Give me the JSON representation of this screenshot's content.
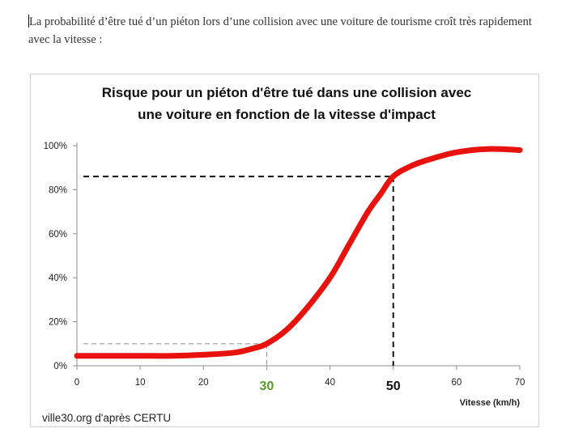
{
  "intro_text": "La probabilité d’être tué d’un piéton lors d’une collision avec une voiture de tourisme croît très rapidement avec la vitesse :",
  "chart_data": {
    "type": "line",
    "title_lines": [
      "Risque pour un piéton d'être tué dans une collision avec",
      "une voiture en fonction de la vitesse d'impact"
    ],
    "xlabel": "Vitesse (km/h)",
    "ylabel": "",
    "xlim": [
      0,
      70
    ],
    "ylim": [
      0,
      100
    ],
    "x_ticks": [
      0,
      10,
      20,
      30,
      40,
      50,
      60,
      70
    ],
    "y_ticks": [
      0,
      20,
      40,
      60,
      80,
      100
    ],
    "y_tick_labels": [
      "0%",
      "20%",
      "40%",
      "60%",
      "80%",
      "100%"
    ],
    "grid": false,
    "legend": "none",
    "series": [
      {
        "color": "#e8120c",
        "x": [
          0,
          5,
          10,
          15,
          20,
          25,
          28,
          30,
          33,
          36,
          40,
          43,
          46,
          48,
          50,
          53,
          56,
          60,
          65,
          70
        ],
        "y": [
          4.5,
          4.5,
          4.5,
          4.5,
          5,
          6,
          8,
          10,
          16,
          25,
          40,
          55,
          70,
          78,
          86,
          91,
          94,
          97,
          98.5,
          98
        ]
      }
    ],
    "annotations": [
      {
        "x": 30,
        "y": 10,
        "style": "dashed",
        "color": "#9a9a9a",
        "label": "30",
        "label_color": "#5a9a2a"
      },
      {
        "x": 50,
        "y": 86,
        "style": "dashed",
        "color": "#111111",
        "label": "50",
        "label_color": "#111111"
      }
    ],
    "source": "ville30.org d'après CERTU"
  }
}
